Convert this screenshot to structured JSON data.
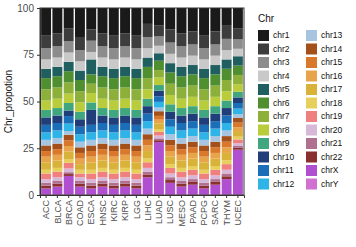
{
  "chart_data": {
    "type": "bar",
    "stacked": true,
    "y_label": "Chr_propotion",
    "legend_title": "Chr",
    "legend": "right",
    "ylim": [
      0,
      100
    ],
    "yticks": [
      0,
      25,
      50,
      75,
      100
    ],
    "categories": [
      "ACC",
      "BLCA",
      "BRCA",
      "COAD",
      "ESCA",
      "HNSC",
      "KIRC",
      "KIRP",
      "LGG",
      "LIHC",
      "LUAD",
      "LUSC",
      "MESO",
      "PAAD",
      "PCPG",
      "SARC",
      "THYM",
      "UCEC"
    ],
    "series": [
      {
        "name": "chr1",
        "color": "#1a1a1a",
        "values": [
          14.5,
          13.5,
          10.8,
          15.5,
          11.5,
          13.5,
          14.5,
          13.5,
          14.5,
          8.5,
          9.2,
          11.5,
          13.5,
          12.5,
          14.5,
          12.5,
          9.5,
          10.8
        ]
      },
      {
        "name": "chr2",
        "color": "#3d3d3d",
        "values": [
          7,
          7,
          7,
          7,
          6,
          7,
          7,
          7,
          7,
          7,
          6,
          7,
          7,
          7,
          7,
          7,
          7,
          6
        ]
      },
      {
        "name": "chr3",
        "color": "#8c8c8c",
        "values": [
          6,
          6,
          6,
          6,
          6,
          6,
          6,
          6,
          6,
          6,
          5,
          6,
          6,
          6,
          6,
          6,
          6,
          5
        ]
      },
      {
        "name": "chr4",
        "color": "#c9c9c9",
        "values": [
          5,
          5,
          5,
          5,
          4,
          5,
          5,
          5,
          5,
          5,
          4,
          5,
          5,
          5,
          5,
          5,
          5,
          4
        ]
      },
      {
        "name": "chr5",
        "color": "#1f5f5f",
        "values": [
          5,
          5,
          5,
          5,
          8,
          5,
          5,
          5,
          5,
          5,
          4,
          5,
          5,
          5,
          5,
          5,
          5,
          5
        ]
      },
      {
        "name": "chr6",
        "color": "#4f8f2f",
        "values": [
          6,
          6,
          6,
          6,
          5,
          6,
          6,
          6,
          6,
          6,
          5,
          6,
          6,
          6,
          6,
          6,
          6,
          5
        ]
      },
      {
        "name": "chr7",
        "color": "#8db03a",
        "values": [
          6,
          6,
          6,
          6,
          5,
          6,
          6,
          6,
          6,
          6,
          4,
          6,
          6,
          6,
          6,
          6,
          6,
          5
        ]
      },
      {
        "name": "chr8",
        "color": "#b9cc3c",
        "values": [
          5,
          5,
          5,
          5,
          5,
          5,
          5,
          5,
          5,
          5,
          4,
          5,
          5,
          5,
          5,
          5,
          5,
          4
        ]
      },
      {
        "name": "chr9",
        "color": "#3fa67f",
        "values": [
          4,
          4,
          4,
          4,
          4,
          4,
          4,
          4,
          4,
          4,
          3,
          4,
          4,
          4,
          4,
          4,
          4,
          3
        ]
      },
      {
        "name": "chr10",
        "color": "#1f3e7a",
        "values": [
          4,
          4,
          3,
          4,
          8,
          4,
          4,
          4,
          4,
          4,
          3,
          4,
          4,
          4,
          4,
          4,
          4,
          3
        ]
      },
      {
        "name": "chr11",
        "color": "#1b6fb8",
        "values": [
          4,
          4,
          4,
          4,
          4,
          4,
          4,
          4,
          4,
          4,
          3,
          4,
          4,
          4,
          4,
          4,
          4,
          3
        ]
      },
      {
        "name": "chr12",
        "color": "#2fb4e8",
        "values": [
          4,
          4,
          4,
          4,
          4,
          4,
          4,
          4,
          4,
          4,
          3,
          4,
          4,
          4,
          4,
          4,
          4,
          3
        ]
      },
      {
        "name": "chr13",
        "color": "#a7c4e0",
        "values": [
          3,
          3,
          2,
          3,
          3,
          3,
          3,
          3,
          3,
          3,
          2,
          3,
          3,
          3,
          3,
          3,
          3,
          2
        ]
      },
      {
        "name": "chr14",
        "color": "#a3501a",
        "values": [
          3,
          3,
          3,
          3,
          3,
          3,
          3,
          3,
          3,
          3,
          2.5,
          3,
          3,
          3,
          3,
          3,
          3,
          2.5
        ]
      },
      {
        "name": "chr15",
        "color": "#d9782a",
        "values": [
          3,
          3,
          3,
          3,
          3,
          3,
          3,
          3,
          3,
          3,
          2,
          3,
          3,
          3,
          3,
          3,
          3,
          2.5
        ]
      },
      {
        "name": "chr16",
        "color": "#e8a44a",
        "values": [
          3,
          3,
          3,
          3,
          3,
          3,
          3,
          3,
          3,
          3,
          2,
          3,
          3,
          3,
          3,
          3,
          3,
          2
        ]
      },
      {
        "name": "chr17",
        "color": "#d9b23a",
        "values": [
          4,
          4,
          4,
          3,
          4,
          4,
          4,
          4,
          4,
          4,
          3,
          4,
          4,
          4,
          4,
          4,
          4,
          3
        ]
      },
      {
        "name": "chr18",
        "color": "#e6cf5a",
        "values": [
          2,
          2,
          2,
          2,
          2,
          2,
          2,
          2,
          2,
          2,
          1.5,
          2,
          2,
          2,
          2,
          2,
          2,
          1.5
        ]
      },
      {
        "name": "chr19",
        "color": "#f08080",
        "values": [
          3,
          3,
          3,
          2,
          3,
          3,
          3,
          3,
          3,
          3,
          2,
          3,
          3,
          3,
          3,
          3,
          3,
          2
        ]
      },
      {
        "name": "chr20",
        "color": "#d8b8d8",
        "values": [
          2,
          2,
          2,
          2,
          2,
          2,
          2,
          2,
          2,
          2,
          1.5,
          2,
          2,
          2,
          2,
          2,
          2,
          1.5
        ]
      },
      {
        "name": "chr21",
        "color": "#b07090",
        "values": [
          1.5,
          1.5,
          1,
          1.5,
          1.5,
          1.5,
          1.5,
          1.5,
          1.5,
          1.5,
          1,
          1.5,
          1.5,
          1.5,
          1.5,
          1.5,
          1.5,
          1
        ]
      },
      {
        "name": "chr22",
        "color": "#8a3030",
        "values": [
          1.5,
          1.5,
          1,
          1.5,
          1.5,
          1.5,
          1.5,
          1.5,
          1.5,
          1.5,
          1,
          1.5,
          1.5,
          1.5,
          1.5,
          1.5,
          1.5,
          1
        ]
      },
      {
        "name": "chrX",
        "color": "#b050d0",
        "values": [
          3,
          4,
          10,
          4,
          3,
          4,
          3,
          4,
          3,
          9,
          28,
          6,
          4,
          5,
          3,
          5,
          8,
          24
        ]
      },
      {
        "name": "chrY",
        "color": "#d070d0",
        "values": [
          0.5,
          0.5,
          0.2,
          0.5,
          0.5,
          0.5,
          0.5,
          0.5,
          0.5,
          0.5,
          0.3,
          0.5,
          0.5,
          0.5,
          0.5,
          0.5,
          0.5,
          0.2
        ]
      }
    ]
  }
}
